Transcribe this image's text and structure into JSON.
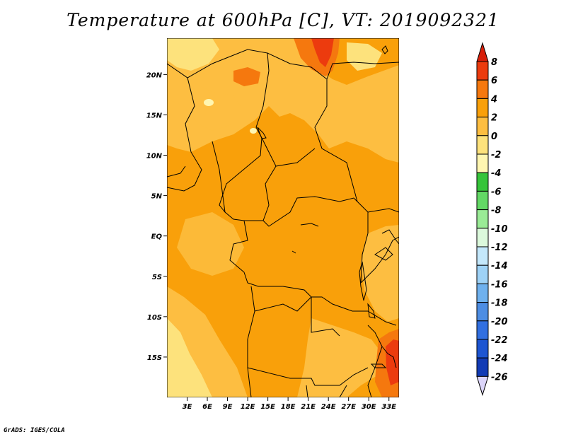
{
  "title": "Temperature at 600hPa [C], VT: 2019092321",
  "credit": "GrADS: IGES/COLA",
  "map": {
    "lon_range": [
      0,
      34.5
    ],
    "lat_range": [
      -20,
      24.5
    ],
    "x_ticks": [
      {
        "value": 3,
        "label": "3E"
      },
      {
        "value": 6,
        "label": "6E"
      },
      {
        "value": 9,
        "label": "9E"
      },
      {
        "value": 12,
        "label": "12E"
      },
      {
        "value": 15,
        "label": "15E"
      },
      {
        "value": 18,
        "label": "18E"
      },
      {
        "value": 21,
        "label": "21E"
      },
      {
        "value": 24,
        "label": "24E"
      },
      {
        "value": 27,
        "label": "27E"
      },
      {
        "value": 30,
        "label": "30E"
      },
      {
        "value": 33,
        "label": "33E"
      }
    ],
    "y_ticks": [
      {
        "value": 20,
        "label": "20N"
      },
      {
        "value": 15,
        "label": "15N"
      },
      {
        "value": 10,
        "label": "10N"
      },
      {
        "value": 5,
        "label": "5N"
      },
      {
        "value": 0,
        "label": "EQ"
      },
      {
        "value": -5,
        "label": "5S"
      },
      {
        "value": -10,
        "label": "10S"
      },
      {
        "value": -15,
        "label": "15S"
      }
    ],
    "colors": {
      "c0_2": "#fdbe41",
      "c2_4": "#f9a00a",
      "cm2_0": "#fde27c",
      "cm4_m2": "#fff6b1",
      "c4_6": "#f5780e",
      "c6_8": "#ec3b0e"
    }
  },
  "colorbar": {
    "levels": [
      "8",
      "6",
      "4",
      "2",
      "0",
      "-2",
      "-4",
      "-6",
      "-8",
      "-10",
      "-12",
      "-14",
      "-16",
      "-18",
      "-20",
      "-22",
      "-24",
      "-26"
    ],
    "colors": [
      "#ec3b0e",
      "#f5780e",
      "#f9a00a",
      "#fdbe41",
      "#fde27c",
      "#fff6b1",
      "#36c43a",
      "#63d865",
      "#9aeb96",
      "#dcf9dc",
      "#c4e8fb",
      "#9ed2f6",
      "#6fb1ee",
      "#4d8de3",
      "#316fe0",
      "#1d55d2",
      "#123bb5",
      "#0c1476"
    ],
    "under_color": "#dcd5fa",
    "over_color": "#d71f0a"
  }
}
